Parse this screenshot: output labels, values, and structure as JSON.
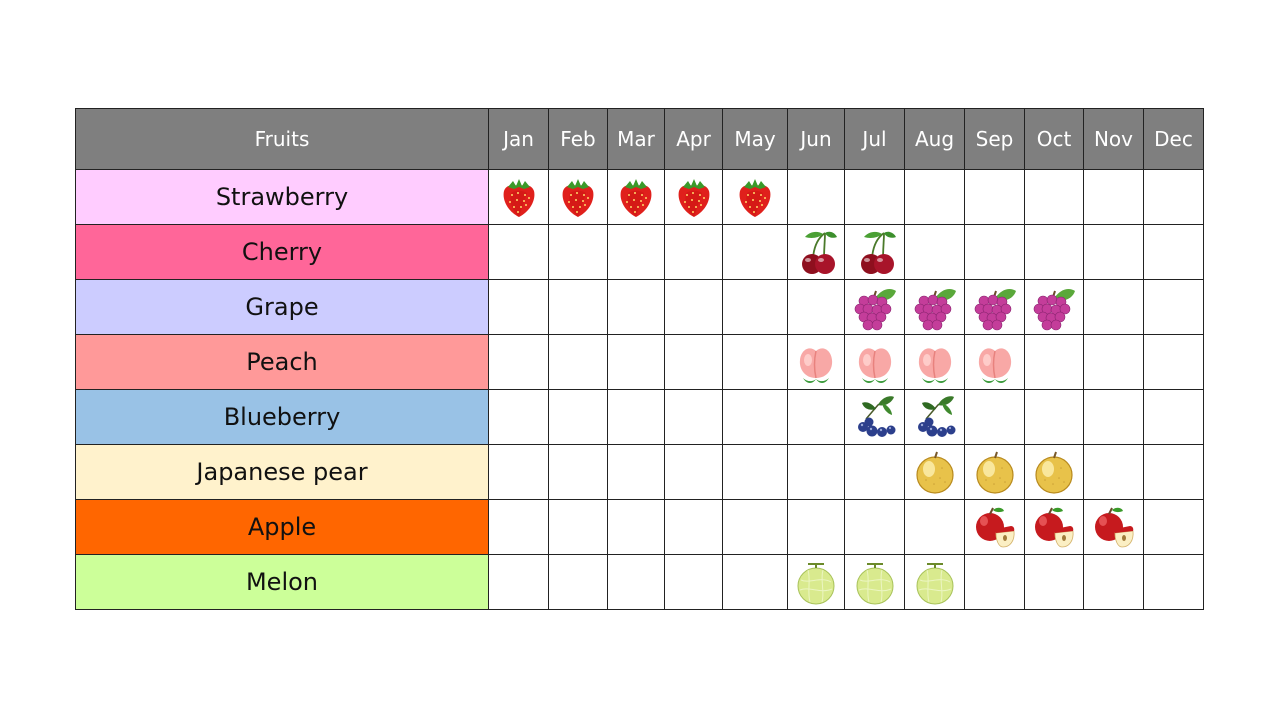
{
  "header": {
    "fruits_label": "Fruits",
    "months": [
      "Jan",
      "Feb",
      "Mar",
      "Apr",
      "May",
      "Jun",
      "Jul",
      "Aug",
      "Sep",
      "Oct",
      "Nov",
      "Dec"
    ]
  },
  "rows": [
    {
      "name": "Strawberry",
      "color": "#ffccff",
      "icon": "strawberry-icon",
      "months": [
        0,
        1,
        2,
        3,
        4
      ]
    },
    {
      "name": "Cherry",
      "color": "#ff6699",
      "icon": "cherry-icon",
      "months": [
        5,
        6
      ]
    },
    {
      "name": "Grape",
      "color": "#ccccff",
      "icon": "grape-icon",
      "months": [
        6,
        7,
        8,
        9
      ]
    },
    {
      "name": "Peach",
      "color": "#ff9999",
      "icon": "peach-icon",
      "months": [
        5,
        6,
        7,
        8
      ]
    },
    {
      "name": "Blueberry",
      "color": "#99c2e6",
      "icon": "blueberry-icon",
      "months": [
        6,
        7
      ]
    },
    {
      "name": "Japanese pear",
      "color": "#fff2cc",
      "icon": "japanese-pear-icon",
      "months": [
        7,
        8,
        9
      ]
    },
    {
      "name": "Apple",
      "color": "#ff6600",
      "icon": "apple-icon",
      "months": [
        8,
        9,
        10
      ]
    },
    {
      "name": "Melon",
      "color": "#ccff99",
      "icon": "melon-icon",
      "months": [
        5,
        6,
        7
      ]
    }
  ]
}
